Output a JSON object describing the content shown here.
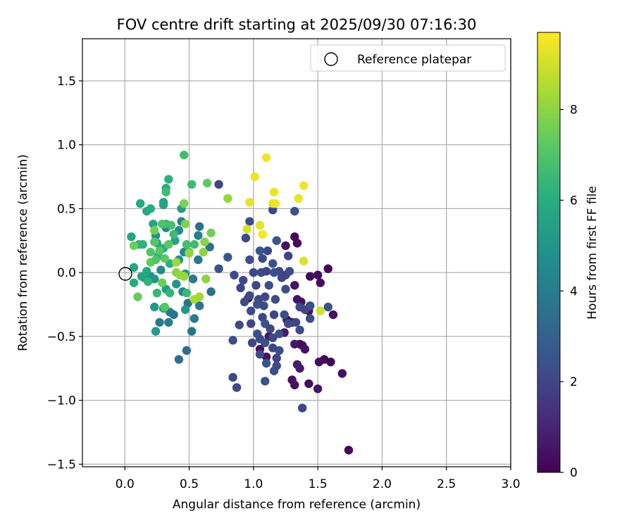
{
  "chart_data": {
    "type": "scatter",
    "title": "FOV centre drift starting at 2025/09/30 07:16:30",
    "xlabel": "Angular distance from reference (arcmin)",
    "ylabel": "Rotation from reference (arcmin)",
    "xlim": [
      -0.33,
      3.0
    ],
    "ylim": [
      -1.52,
      1.83
    ],
    "xticks": [
      0.0,
      0.5,
      1.0,
      1.5,
      2.0,
      2.5,
      3.0
    ],
    "xtick_labels": [
      "0.0",
      "0.5",
      "1.0",
      "1.5",
      "2.0",
      "2.5",
      "3.0"
    ],
    "yticks": [
      -1.5,
      -1.0,
      -0.5,
      0.0,
      0.5,
      1.0,
      1.5
    ],
    "ytick_labels": [
      "−1.5",
      "−1.0",
      "−0.5",
      "0.0",
      "0.5",
      "1.0",
      "1.5"
    ],
    "grid": true,
    "legend": {
      "position": "top-right",
      "entries": [
        "Reference platepar"
      ]
    },
    "reference_point": {
      "x": 0.0,
      "y": 0.0,
      "label": "Reference platepar"
    },
    "colorbar": {
      "label": "Hours from first FF file",
      "colormap": "viridis",
      "range": [
        0,
        9.7
      ],
      "ticks": [
        0,
        2,
        4,
        6,
        8
      ],
      "tick_labels": [
        "0",
        "2",
        "4",
        "6",
        "8"
      ]
    },
    "points": [
      {
        "x": 0.96,
        "y": -0.2,
        "hours": 0.3
      },
      {
        "x": 1.25,
        "y": 0.21,
        "hours": 0.5
      },
      {
        "x": 1.32,
        "y": 0.28,
        "hours": 0.3
      },
      {
        "x": 1.34,
        "y": 0.23,
        "hours": 0.2
      },
      {
        "x": 1.32,
        "y": -0.1,
        "hours": 0.4
      },
      {
        "x": 1.34,
        "y": -0.21,
        "hours": 0.6
      },
      {
        "x": 1.37,
        "y": -0.23,
        "hours": 0.5
      },
      {
        "x": 1.43,
        "y": -0.3,
        "hours": 0.6
      },
      {
        "x": 1.44,
        "y": -0.03,
        "hours": 0.2
      },
      {
        "x": 1.5,
        "y": -0.02,
        "hours": 0.2
      },
      {
        "x": 1.52,
        "y": -0.08,
        "hours": 0.3
      },
      {
        "x": 1.58,
        "y": 0.03,
        "hours": 0.1
      },
      {
        "x": 1.26,
        "y": -0.37,
        "hours": 0.5
      },
      {
        "x": 1.3,
        "y": -0.39,
        "hours": 0.6
      },
      {
        "x": 1.24,
        "y": -0.47,
        "hours": 0.7
      },
      {
        "x": 1.36,
        "y": -0.56,
        "hours": 0.4
      },
      {
        "x": 1.38,
        "y": -0.57,
        "hours": 0.3
      },
      {
        "x": 1.4,
        "y": -0.6,
        "hours": 0.5
      },
      {
        "x": 1.32,
        "y": -0.56,
        "hours": 0.6
      },
      {
        "x": 1.34,
        "y": -0.72,
        "hours": 0.8
      },
      {
        "x": 1.36,
        "y": -0.75,
        "hours": 0.7
      },
      {
        "x": 1.3,
        "y": -0.84,
        "hours": 0.4
      },
      {
        "x": 1.32,
        "y": -0.88,
        "hours": 0.5
      },
      {
        "x": 1.43,
        "y": -0.87,
        "hours": 0.3
      },
      {
        "x": 1.5,
        "y": -0.91,
        "hours": 0.6
      },
      {
        "x": 1.51,
        "y": -0.7,
        "hours": 0.3
      },
      {
        "x": 1.55,
        "y": -0.68,
        "hours": 0.2
      },
      {
        "x": 1.6,
        "y": -0.7,
        "hours": 0.1
      },
      {
        "x": 1.69,
        "y": -0.79,
        "hours": 0.4
      },
      {
        "x": 1.62,
        "y": -0.33,
        "hours": 0.5
      },
      {
        "x": 1.05,
        "y": -0.6,
        "hours": 0.4
      },
      {
        "x": 1.1,
        "y": -0.66,
        "hours": 0.5
      },
      {
        "x": 1.12,
        "y": -0.5,
        "hours": 0.6
      },
      {
        "x": 1.74,
        "y": -1.39,
        "hours": 0.0
      },
      {
        "x": 0.73,
        "y": 0.69,
        "hours": 2.1
      },
      {
        "x": 0.97,
        "y": 0.4,
        "hours": 2.3
      },
      {
        "x": 1.15,
        "y": 0.49,
        "hours": 2.0
      },
      {
        "x": 1.32,
        "y": 0.48,
        "hours": 2.4
      },
      {
        "x": 0.94,
        "y": 0.27,
        "hours": 2.2
      },
      {
        "x": 1.18,
        "y": 0.25,
        "hours": 2.5
      },
      {
        "x": 1.05,
        "y": 0.17,
        "hours": 2.6
      },
      {
        "x": 1.11,
        "y": 0.17,
        "hours": 2.1
      },
      {
        "x": 1.27,
        "y": 0.13,
        "hours": 2.0
      },
      {
        "x": 0.97,
        "y": 0.1,
        "hours": 2.3
      },
      {
        "x": 1.07,
        "y": 0.11,
        "hours": 2.2
      },
      {
        "x": 1.15,
        "y": 0.07,
        "hours": 2.4
      },
      {
        "x": 0.73,
        "y": 0.03,
        "hours": 2.5
      },
      {
        "x": 0.85,
        "y": -0.02,
        "hours": 2.3
      },
      {
        "x": 1.0,
        "y": 0.0,
        "hours": 2.1
      },
      {
        "x": 1.06,
        "y": 0.0,
        "hours": 2.2
      },
      {
        "x": 1.1,
        "y": 0.01,
        "hours": 2.0
      },
      {
        "x": 1.16,
        "y": 0.0,
        "hours": 2.4
      },
      {
        "x": 1.2,
        "y": 0.01,
        "hours": 2.2
      },
      {
        "x": 1.22,
        "y": -0.04,
        "hours": 2.0
      },
      {
        "x": 1.25,
        "y": -0.02,
        "hours": 1.9
      },
      {
        "x": 1.28,
        "y": 0.01,
        "hours": 2.3
      },
      {
        "x": 0.92,
        "y": -0.06,
        "hours": 2.2
      },
      {
        "x": 0.9,
        "y": -0.12,
        "hours": 2.0
      },
      {
        "x": 1.02,
        "y": -0.1,
        "hours": 2.1
      },
      {
        "x": 1.12,
        "y": -0.1,
        "hours": 2.3
      },
      {
        "x": 1.25,
        "y": -0.13,
        "hours": 2.4
      },
      {
        "x": 0.97,
        "y": -0.18,
        "hours": 2.2
      },
      {
        "x": 1.04,
        "y": -0.21,
        "hours": 2.0
      },
      {
        "x": 1.09,
        "y": -0.19,
        "hours": 2.1
      },
      {
        "x": 1.17,
        "y": -0.21,
        "hours": 2.3
      },
      {
        "x": 0.93,
        "y": -0.23,
        "hours": 2.2
      },
      {
        "x": 1.03,
        "y": -0.25,
        "hours": 2.4
      },
      {
        "x": 1.08,
        "y": -0.26,
        "hours": 2.2
      },
      {
        "x": 1.36,
        "y": -0.27,
        "hours": 2.1
      },
      {
        "x": 1.4,
        "y": -0.29,
        "hours": 2.0
      },
      {
        "x": 1.44,
        "y": -0.26,
        "hours": 2.3
      },
      {
        "x": 1.58,
        "y": -0.27,
        "hours": 2.4
      },
      {
        "x": 0.98,
        "y": -0.3,
        "hours": 2.2
      },
      {
        "x": 1.16,
        "y": -0.33,
        "hours": 2.0
      },
      {
        "x": 1.24,
        "y": -0.33,
        "hours": 2.3
      },
      {
        "x": 1.07,
        "y": -0.35,
        "hours": 2.1
      },
      {
        "x": 1.44,
        "y": -0.36,
        "hours": 2.2
      },
      {
        "x": 0.98,
        "y": -0.4,
        "hours": 2.0
      },
      {
        "x": 1.09,
        "y": -0.4,
        "hours": 2.4
      },
      {
        "x": 1.27,
        "y": -0.4,
        "hours": 2.3
      },
      {
        "x": 1.33,
        "y": -0.39,
        "hours": 2.1
      },
      {
        "x": 0.89,
        "y": -0.41,
        "hours": 2.2
      },
      {
        "x": 1.13,
        "y": -0.44,
        "hours": 2.0
      },
      {
        "x": 1.2,
        "y": -0.48,
        "hours": 2.3
      },
      {
        "x": 1.36,
        "y": -0.45,
        "hours": 2.2
      },
      {
        "x": 1.03,
        "y": -0.48,
        "hours": 2.4
      },
      {
        "x": 1.15,
        "y": -0.51,
        "hours": 2.1
      },
      {
        "x": 0.84,
        "y": -0.53,
        "hours": 2.3
      },
      {
        "x": 0.99,
        "y": -0.55,
        "hours": 2.0
      },
      {
        "x": 1.05,
        "y": -0.52,
        "hours": 2.2
      },
      {
        "x": 1.09,
        "y": -0.55,
        "hours": 2.4
      },
      {
        "x": 1.15,
        "y": -0.59,
        "hours": 2.1
      },
      {
        "x": 1.2,
        "y": -0.61,
        "hours": 2.3
      },
      {
        "x": 1.05,
        "y": -0.64,
        "hours": 2.2
      },
      {
        "x": 1.18,
        "y": -0.67,
        "hours": 2.0
      },
      {
        "x": 1.1,
        "y": -0.71,
        "hours": 2.4
      },
      {
        "x": 1.18,
        "y": -0.73,
        "hours": 2.2
      },
      {
        "x": 1.16,
        "y": -0.77,
        "hours": 2.3
      },
      {
        "x": 0.84,
        "y": -0.82,
        "hours": 2.1
      },
      {
        "x": 0.87,
        "y": -0.9,
        "hours": 2.2
      },
      {
        "x": 1.09,
        "y": -0.85,
        "hours": 2.4
      },
      {
        "x": 1.38,
        "y": -1.06,
        "hours": 2.0
      },
      {
        "x": 0.8,
        "y": 0.12,
        "hours": 2.6
      },
      {
        "x": 0.66,
        "y": 0.2,
        "hours": 3.5
      },
      {
        "x": 0.57,
        "y": 0.1,
        "hours": 3.8
      },
      {
        "x": 0.53,
        "y": -0.05,
        "hours": 3.9
      },
      {
        "x": 0.67,
        "y": -0.15,
        "hours": 3.7
      },
      {
        "x": 0.49,
        "y": -0.24,
        "hours": 3.6
      },
      {
        "x": 0.58,
        "y": -0.26,
        "hours": 3.8
      },
      {
        "x": 0.54,
        "y": -0.36,
        "hours": 3.9
      },
      {
        "x": 0.52,
        "y": -0.46,
        "hours": 3.7
      },
      {
        "x": 0.48,
        "y": -0.61,
        "hours": 3.5
      },
      {
        "x": 0.42,
        "y": -0.68,
        "hours": 3.4
      },
      {
        "x": 0.35,
        "y": -0.31,
        "hours": 3.9
      },
      {
        "x": 0.38,
        "y": -0.33,
        "hours": 3.8
      },
      {
        "x": 0.34,
        "y": -0.39,
        "hours": 4.1
      },
      {
        "x": 0.27,
        "y": -0.39,
        "hours": 4.0
      },
      {
        "x": 0.58,
        "y": 0.36,
        "hours": 3.6
      },
      {
        "x": 0.57,
        "y": 0.29,
        "hours": 4.2
      },
      {
        "x": 0.45,
        "y": -0.15,
        "hours": 4.3
      },
      {
        "x": 0.44,
        "y": 0.4,
        "hours": 4.4
      },
      {
        "x": 0.32,
        "y": 0.35,
        "hours": 4.5
      },
      {
        "x": 0.42,
        "y": 0.33,
        "hours": 4.6
      },
      {
        "x": 0.24,
        "y": 0.29,
        "hours": 4.7
      },
      {
        "x": 0.46,
        "y": 0.16,
        "hours": 4.5
      },
      {
        "x": 0.42,
        "y": 0.1,
        "hours": 4.8
      },
      {
        "x": 0.28,
        "y": 0.02,
        "hours": 4.6
      },
      {
        "x": 0.2,
        "y": -0.03,
        "hours": 4.9
      },
      {
        "x": 0.23,
        "y": -0.05,
        "hours": 5.0
      },
      {
        "x": 0.15,
        "y": -0.04,
        "hours": 5.1
      },
      {
        "x": 0.47,
        "y": -0.01,
        "hours": 5.2
      },
      {
        "x": 0.4,
        "y": -0.09,
        "hours": 5.0
      },
      {
        "x": 0.32,
        "y": -0.13,
        "hours": 5.3
      },
      {
        "x": 0.23,
        "y": -0.27,
        "hours": 5.2
      },
      {
        "x": 0.3,
        "y": -0.28,
        "hours": 5.4
      },
      {
        "x": 0.47,
        "y": -0.29,
        "hours": 5.1
      },
      {
        "x": 0.24,
        "y": -0.46,
        "hours": 5.3
      },
      {
        "x": 0.3,
        "y": 0.53,
        "hours": 5.5
      },
      {
        "x": 0.44,
        "y": 0.5,
        "hours": 5.4
      },
      {
        "x": 0.3,
        "y": 0.55,
        "hours": 5.6
      },
      {
        "x": 0.17,
        "y": 0.48,
        "hours": 5.8
      },
      {
        "x": 0.12,
        "y": 0.54,
        "hours": 5.9
      },
      {
        "x": 0.2,
        "y": 0.5,
        "hours": 6.0
      },
      {
        "x": 0.32,
        "y": 0.66,
        "hours": 5.9
      },
      {
        "x": 0.34,
        "y": 0.73,
        "hours": 6.2
      },
      {
        "x": 0.05,
        "y": 0.28,
        "hours": 5.6
      },
      {
        "x": 0.22,
        "y": 0.38,
        "hours": 5.7
      },
      {
        "x": 0.39,
        "y": 0.25,
        "hours": 5.6
      },
      {
        "x": 0.25,
        "y": 0.23,
        "hours": 5.8
      },
      {
        "x": 0.3,
        "y": 0.19,
        "hours": 5.9
      },
      {
        "x": 0.07,
        "y": 0.04,
        "hours": 5.7
      },
      {
        "x": 0.07,
        "y": -0.08,
        "hours": 6.0
      },
      {
        "x": 0.13,
        "y": -0.03,
        "hours": 5.6
      },
      {
        "x": 0.17,
        "y": 0.01,
        "hours": 5.8
      },
      {
        "x": 0.26,
        "y": 0.13,
        "hours": 6.0
      },
      {
        "x": 0.35,
        "y": 0.07,
        "hours": 6.1
      },
      {
        "x": 0.18,
        "y": -0.07,
        "hours": 6.2
      },
      {
        "x": 0.11,
        "y": 0.22,
        "hours": 6.3
      },
      {
        "x": 0.14,
        "y": 0.22,
        "hours": 6.2
      },
      {
        "x": 0.25,
        "y": -0.16,
        "hours": 6.4
      },
      {
        "x": 0.35,
        "y": -0.16,
        "hours": 6.3
      },
      {
        "x": 0.48,
        "y": -0.16,
        "hours": 6.5
      },
      {
        "x": 0.32,
        "y": 0.38,
        "hours": 6.5
      },
      {
        "x": 0.38,
        "y": 0.3,
        "hours": 6.6
      },
      {
        "x": 0.52,
        "y": 0.69,
        "hours": 6.6
      },
      {
        "x": 0.32,
        "y": 0.63,
        "hours": 6.7
      },
      {
        "x": 0.36,
        "y": 0.37,
        "hours": 6.8
      },
      {
        "x": 0.29,
        "y": 0.38,
        "hours": 6.9
      },
      {
        "x": 0.48,
        "y": 0.22,
        "hours": 6.8
      },
      {
        "x": 0.54,
        "y": 0.22,
        "hours": 6.7
      },
      {
        "x": 0.5,
        "y": 0.16,
        "hours": 7.0
      },
      {
        "x": 0.2,
        "y": 0.16,
        "hours": 7.0
      },
      {
        "x": 0.23,
        "y": 0.24,
        "hours": 7.1
      },
      {
        "x": 0.27,
        "y": 0.17,
        "hours": 7.1
      },
      {
        "x": 0.34,
        "y": 0.22,
        "hours": 7.2
      },
      {
        "x": 0.31,
        "y": 0.11,
        "hours": 7.2
      },
      {
        "x": 0.2,
        "y": 0.08,
        "hours": 7.3
      },
      {
        "x": 0.24,
        "y": 0.1,
        "hours": 7.0
      },
      {
        "x": 0.31,
        "y": -0.27,
        "hours": 7.1
      },
      {
        "x": 0.46,
        "y": 0.92,
        "hours": 6.7
      },
      {
        "x": 0.64,
        "y": 0.7,
        "hours": 7.3
      },
      {
        "x": 0.1,
        "y": -0.19,
        "hours": 7.4
      },
      {
        "x": 0.07,
        "y": 0.21,
        "hours": 7.5
      },
      {
        "x": 0.67,
        "y": 0.31,
        "hours": 7.6
      },
      {
        "x": 0.46,
        "y": 0.54,
        "hours": 7.7
      },
      {
        "x": 0.23,
        "y": 0.33,
        "hours": 7.6
      },
      {
        "x": 0.47,
        "y": 0.38,
        "hours": 7.8
      },
      {
        "x": 0.62,
        "y": 0.24,
        "hours": 7.9
      },
      {
        "x": 0.61,
        "y": 0.16,
        "hours": 8.0
      },
      {
        "x": 0.5,
        "y": 0.15,
        "hours": 8.1
      },
      {
        "x": 0.29,
        "y": -0.08,
        "hours": 7.5
      },
      {
        "x": 0.4,
        "y": 0.0,
        "hours": 7.9
      },
      {
        "x": 0.43,
        "y": -0.02,
        "hours": 8.1
      },
      {
        "x": 0.46,
        "y": -0.03,
        "hours": 8.2
      },
      {
        "x": 0.63,
        "y": -0.05,
        "hours": 8.0
      },
      {
        "x": 0.58,
        "y": -0.19,
        "hours": 8.3
      },
      {
        "x": 0.54,
        "y": -0.21,
        "hours": 8.4
      },
      {
        "x": 0.4,
        "y": 0.08,
        "hours": 8.2
      },
      {
        "x": 0.8,
        "y": 0.58,
        "hours": 8.1
      },
      {
        "x": 1.01,
        "y": 0.75,
        "hours": 9.4
      },
      {
        "x": 1.1,
        "y": 0.9,
        "hours": 9.5
      },
      {
        "x": 0.97,
        "y": 0.55,
        "hours": 9.4
      },
      {
        "x": 1.15,
        "y": 0.54,
        "hours": 9.3
      },
      {
        "x": 1.17,
        "y": 0.54,
        "hours": 9.5
      },
      {
        "x": 1.16,
        "y": 0.63,
        "hours": 9.4
      },
      {
        "x": 1.39,
        "y": 0.68,
        "hours": 9.5
      },
      {
        "x": 1.35,
        "y": 0.58,
        "hours": 9.4
      },
      {
        "x": 0.95,
        "y": 0.34,
        "hours": 9.1
      },
      {
        "x": 1.05,
        "y": 0.37,
        "hours": 9.3
      },
      {
        "x": 1.07,
        "y": 0.3,
        "hours": 9.6
      },
      {
        "x": 1.39,
        "y": 0.09,
        "hours": 9.2
      },
      {
        "x": 1.52,
        "y": -0.3,
        "hours": 9.0
      }
    ]
  }
}
